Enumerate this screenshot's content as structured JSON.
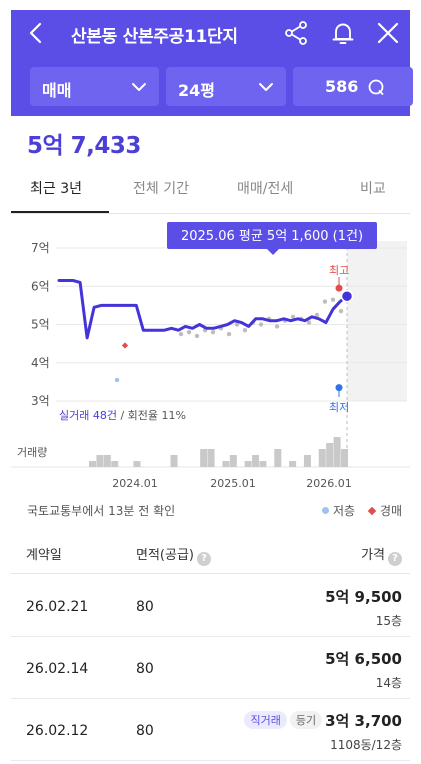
{
  "header": {
    "title": "산본동 산본주공11단지",
    "filters": {
      "trade_type": "매매",
      "size": "24평",
      "count": "586"
    }
  },
  "price": "5억 7,433",
  "tabs": [
    "최근 3년",
    "전체 기간",
    "매매/전세",
    "비교"
  ],
  "chart_data": {
    "type": "line",
    "tooltip": "2025.06 평균 5억 1,600 (1건)",
    "y_ticks": [
      "7억",
      "6억",
      "5억",
      "4억",
      "3억"
    ],
    "ylim": [
      3,
      7
    ],
    "x_ticks": [
      "2024.01",
      "2025.01",
      "2026.01"
    ],
    "high_label": "최고",
    "low_label": "최저",
    "stats_highlight": "실거래 48건",
    "stats_rest": " / 회전율 11%",
    "volume_label": "거래량",
    "series": [
      {
        "values_eok": [
          6.15,
          6.15,
          6.15,
          6.1,
          4.65,
          5.45,
          5.5,
          5.5,
          5.5,
          5.5,
          5.5,
          5.5,
          4.85,
          4.85,
          4.85,
          4.85,
          4.9,
          4.85,
          4.95,
          4.9,
          5.0,
          4.9,
          4.9,
          4.95,
          5.0,
          5.1,
          5.05,
          4.95,
          5.15,
          5.15,
          5.1,
          5.1,
          5.15,
          5.1,
          5.15,
          5.1,
          5.2,
          5.15,
          5.05,
          5.4,
          5.6,
          5.74
        ]
      }
    ],
    "trades_eok": [
      3.55,
      4.75,
      4.8,
      4.7,
      4.85,
      4.8,
      4.9,
      4.75,
      5.0,
      4.85,
      5.05,
      5.0,
      5.15,
      4.95,
      5.1,
      5.2,
      5.15,
      5.05,
      5.25,
      5.6,
      5.65,
      5.35
    ],
    "auctions_eok": [
      4.45
    ],
    "max_eok": 5.95,
    "min_eok": 3.35,
    "volume": [
      1,
      2,
      2,
      1,
      0,
      0,
      1,
      0,
      0,
      0,
      0,
      2,
      0,
      0,
      0,
      3,
      3,
      0,
      1,
      2,
      0,
      1,
      2,
      1,
      0,
      3,
      0,
      1,
      0,
      2,
      0,
      3,
      4,
      5,
      3
    ]
  },
  "legend": {
    "dot": "저층",
    "diamond": "경매"
  },
  "source": "국토교통부에서 13분 전 확인",
  "table": {
    "headers": {
      "date": "계약일",
      "area": "면적(공급)",
      "price": "가격"
    },
    "rows": [
      {
        "date": "26.02.21",
        "area": "80",
        "price": "5억 9,500",
        "floor": "15층",
        "badges": []
      },
      {
        "date": "26.02.14",
        "area": "80",
        "price": "5억 6,500",
        "floor": "14층",
        "badges": []
      },
      {
        "date": "26.02.12",
        "area": "80",
        "price": "3억 3,700",
        "floor": "1108동/12층",
        "badges": [
          "직거래",
          "등기"
        ]
      }
    ]
  }
}
